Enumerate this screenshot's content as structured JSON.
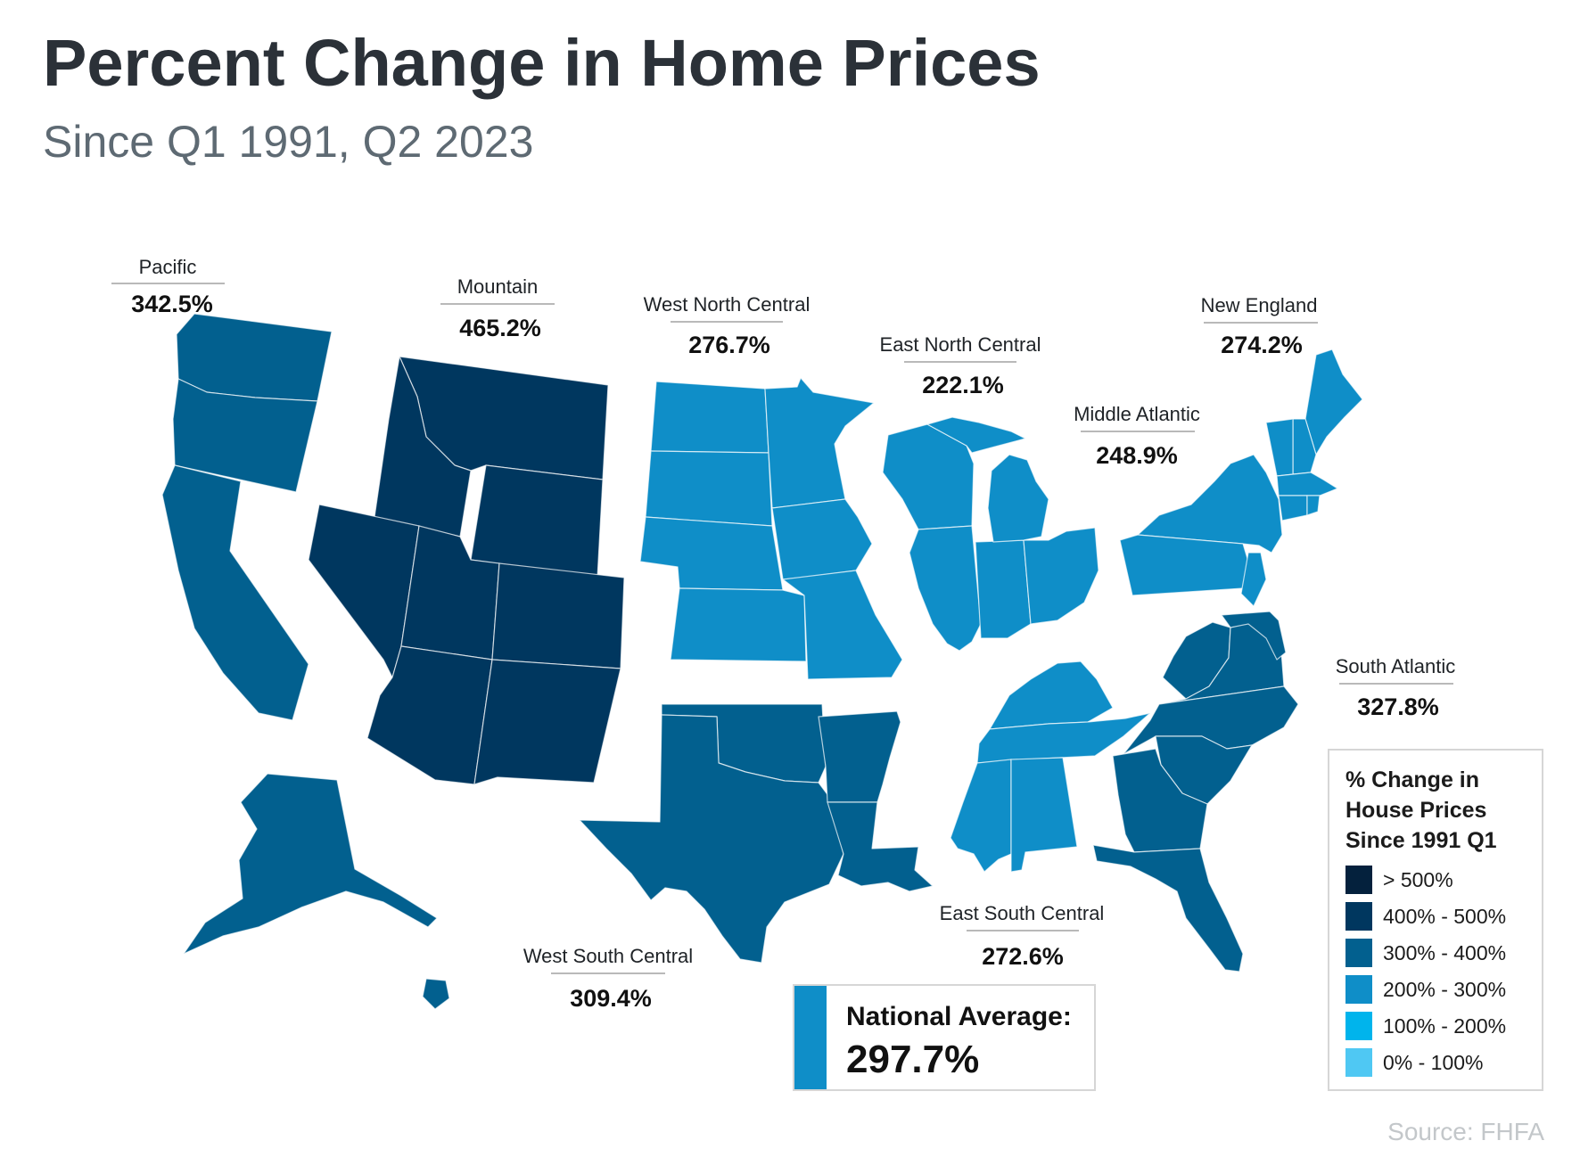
{
  "header": {
    "title": "Percent Change in Home Prices",
    "subtitle": "Since Q1 1991, Q2 2023"
  },
  "colors": {
    "over_500": "#04213d",
    "r400_500": "#00375f",
    "r300_400": "#02608f",
    "r200_300": "#0f8ec8",
    "r100_200": "#00b4ec",
    "r0_100": "#4fc8f3"
  },
  "regions": [
    {
      "name": "Pacific",
      "value": "342.5%",
      "color": "#02608f"
    },
    {
      "name": "Mountain",
      "value": "465.2%",
      "color": "#00375f"
    },
    {
      "name": "West North Central",
      "value": "276.7%",
      "color": "#0f8ec8"
    },
    {
      "name": "East North Central",
      "value": "222.1%",
      "color": "#0f8ec8"
    },
    {
      "name": "New England",
      "value": "274.2%",
      "color": "#0f8ec8"
    },
    {
      "name": "Middle Atlantic",
      "value": "248.9%",
      "color": "#0f8ec8"
    },
    {
      "name": "South Atlantic",
      "value": "327.8%",
      "color": "#02608f"
    },
    {
      "name": "East South Central",
      "value": "272.6%",
      "color": "#0f8ec8"
    },
    {
      "name": "West South Central",
      "value": "309.4%",
      "color": "#02608f"
    }
  ],
  "legend": {
    "title": "% Change in House Prices Since 1991 Q1",
    "items": [
      {
        "label": "> 500%",
        "color": "#04213d"
      },
      {
        "label": "400% - 500%",
        "color": "#00375f"
      },
      {
        "label": "300% - 400%",
        "color": "#02608f"
      },
      {
        "label": "200% - 300%",
        "color": "#0f8ec8"
      },
      {
        "label": "100% - 200%",
        "color": "#00b4ec"
      },
      {
        "label": "0% - 100%",
        "color": "#4fc8f3"
      }
    ]
  },
  "national": {
    "label": "National Average:",
    "value": "297.7%"
  },
  "source": "Source: FHFA"
}
